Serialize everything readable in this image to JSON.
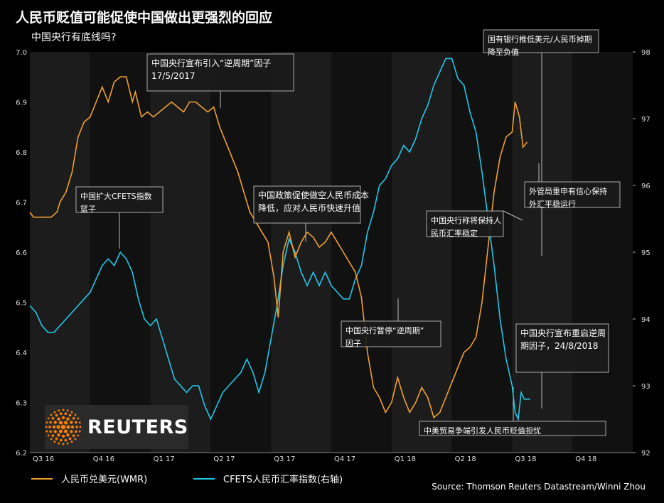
{
  "header": {
    "title": "人民币贬值可能促使中国做出更强烈的回应",
    "subtitle": "中国央行有底线吗?"
  },
  "legend": {
    "series1": "人民币兑美元(WMR)",
    "series2": "CFETS人民币汇率指数(右轴)"
  },
  "source": "Source: Thomson Reuters Datastream/Winni Zhou",
  "logo": {
    "text": "REUTERS",
    "icon": "reuters-dots-logo"
  },
  "colors": {
    "cny": "#f0a030",
    "cfets": "#1ec8e6",
    "background": "#000000"
  },
  "chart_data": {
    "type": "line",
    "x_ticks": [
      "Q3 16",
      "Q4 16",
      "Q1 17",
      "Q2 17",
      "Q3 17",
      "Q4 17",
      "Q1 18",
      "Q2 18",
      "Q3 18",
      "Q4 18"
    ],
    "y_left": {
      "range": [
        6.2,
        7.0
      ],
      "ticks": [
        "6.2",
        "6.3",
        "6.4",
        "6.5",
        "6.6",
        "6.7",
        "6.8",
        "6.9",
        "7.0"
      ]
    },
    "y_right": {
      "range": [
        92,
        98
      ],
      "ticks": [
        "92",
        "93",
        "94",
        "95",
        "96",
        "97",
        "98"
      ]
    },
    "series": [
      {
        "name": "人民币兑美元(WMR)",
        "axis": "left",
        "points": [
          [
            0,
            6.68
          ],
          [
            0.06,
            6.67
          ],
          [
            0.1,
            6.67
          ],
          [
            0.2,
            6.67
          ],
          [
            0.28,
            6.67
          ],
          [
            0.35,
            6.67
          ],
          [
            0.45,
            6.68
          ],
          [
            0.5,
            6.7
          ],
          [
            0.6,
            6.72
          ],
          [
            0.7,
            6.76
          ],
          [
            0.8,
            6.83
          ],
          [
            0.9,
            6.86
          ],
          [
            1.0,
            6.87
          ],
          [
            1.1,
            6.9
          ],
          [
            1.2,
            6.93
          ],
          [
            1.3,
            6.9
          ],
          [
            1.4,
            6.94
          ],
          [
            1.5,
            6.95
          ],
          [
            1.6,
            6.95
          ],
          [
            1.7,
            6.9
          ],
          [
            1.75,
            6.92
          ],
          [
            1.85,
            6.87
          ],
          [
            1.95,
            6.88
          ],
          [
            2.05,
            6.87
          ],
          [
            2.15,
            6.88
          ],
          [
            2.25,
            6.89
          ],
          [
            2.35,
            6.9
          ],
          [
            2.45,
            6.89
          ],
          [
            2.55,
            6.88
          ],
          [
            2.65,
            6.9
          ],
          [
            2.75,
            6.9
          ],
          [
            2.85,
            6.89
          ],
          [
            2.95,
            6.88
          ],
          [
            3.05,
            6.89
          ],
          [
            3.15,
            6.85
          ],
          [
            3.25,
            6.82
          ],
          [
            3.35,
            6.79
          ],
          [
            3.45,
            6.76
          ],
          [
            3.55,
            6.72
          ],
          [
            3.65,
            6.68
          ],
          [
            3.75,
            6.66
          ],
          [
            3.85,
            6.64
          ],
          [
            3.95,
            6.62
          ],
          [
            4.05,
            6.55
          ],
          [
            4.12,
            6.47
          ],
          [
            4.2,
            6.6
          ],
          [
            4.3,
            6.64
          ],
          [
            4.4,
            6.59
          ],
          [
            4.5,
            6.62
          ],
          [
            4.6,
            6.64
          ],
          [
            4.7,
            6.63
          ],
          [
            4.8,
            6.61
          ],
          [
            4.9,
            6.62
          ],
          [
            5.0,
            6.64
          ],
          [
            5.1,
            6.62
          ],
          [
            5.2,
            6.6
          ],
          [
            5.3,
            6.58
          ],
          [
            5.4,
            6.56
          ],
          [
            5.5,
            6.51
          ],
          [
            5.6,
            6.4
          ],
          [
            5.7,
            6.33
          ],
          [
            5.8,
            6.31
          ],
          [
            5.9,
            6.28
          ],
          [
            6.0,
            6.3
          ],
          [
            6.1,
            6.35
          ],
          [
            6.2,
            6.31
          ],
          [
            6.3,
            6.28
          ],
          [
            6.4,
            6.3
          ],
          [
            6.5,
            6.33
          ],
          [
            6.6,
            6.31
          ],
          [
            6.7,
            6.27
          ],
          [
            6.8,
            6.28
          ],
          [
            6.9,
            6.31
          ],
          [
            7.0,
            6.34
          ],
          [
            7.1,
            6.37
          ],
          [
            7.2,
            6.4
          ],
          [
            7.3,
            6.41
          ],
          [
            7.4,
            6.43
          ],
          [
            7.5,
            6.5
          ],
          [
            7.6,
            6.61
          ],
          [
            7.7,
            6.72
          ],
          [
            7.8,
            6.79
          ],
          [
            7.9,
            6.83
          ],
          [
            8.0,
            6.84
          ],
          [
            8.05,
            6.9
          ],
          [
            8.12,
            6.87
          ],
          [
            8.18,
            6.81
          ],
          [
            8.25,
            6.82
          ]
        ]
      },
      {
        "name": "CFETS人民币汇率指数(右轴)",
        "axis": "right",
        "points": [
          [
            0,
            94.2
          ],
          [
            0.1,
            94.1
          ],
          [
            0.2,
            93.9
          ],
          [
            0.3,
            93.8
          ],
          [
            0.4,
            93.8
          ],
          [
            0.5,
            93.9
          ],
          [
            0.6,
            94.0
          ],
          [
            0.7,
            94.1
          ],
          [
            0.8,
            94.2
          ],
          [
            0.9,
            94.3
          ],
          [
            1.0,
            94.4
          ],
          [
            1.1,
            94.6
          ],
          [
            1.2,
            94.8
          ],
          [
            1.3,
            94.9
          ],
          [
            1.4,
            94.8
          ],
          [
            1.5,
            95.0
          ],
          [
            1.6,
            94.9
          ],
          [
            1.7,
            94.7
          ],
          [
            1.8,
            94.3
          ],
          [
            1.9,
            94.0
          ],
          [
            2.0,
            93.9
          ],
          [
            2.1,
            94.0
          ],
          [
            2.2,
            93.7
          ],
          [
            2.3,
            93.4
          ],
          [
            2.4,
            93.1
          ],
          [
            2.5,
            93.0
          ],
          [
            2.6,
            92.9
          ],
          [
            2.7,
            93.0
          ],
          [
            2.8,
            93.0
          ],
          [
            2.9,
            92.7
          ],
          [
            3.0,
            92.5
          ],
          [
            3.1,
            92.7
          ],
          [
            3.2,
            92.9
          ],
          [
            3.3,
            93.0
          ],
          [
            3.4,
            93.1
          ],
          [
            3.5,
            93.2
          ],
          [
            3.6,
            93.4
          ],
          [
            3.7,
            93.2
          ],
          [
            3.8,
            92.9
          ],
          [
            3.9,
            93.2
          ],
          [
            4.0,
            93.7
          ],
          [
            4.1,
            94.2
          ],
          [
            4.2,
            94.8
          ],
          [
            4.3,
            95.2
          ],
          [
            4.4,
            95.0
          ],
          [
            4.5,
            94.7
          ],
          [
            4.6,
            94.5
          ],
          [
            4.7,
            94.7
          ],
          [
            4.8,
            94.5
          ],
          [
            4.9,
            94.7
          ],
          [
            5.0,
            94.5
          ],
          [
            5.1,
            94.4
          ],
          [
            5.2,
            94.3
          ],
          [
            5.3,
            94.3
          ],
          [
            5.4,
            94.6
          ],
          [
            5.5,
            94.8
          ],
          [
            5.6,
            95.3
          ],
          [
            5.7,
            95.6
          ],
          [
            5.8,
            96.0
          ],
          [
            5.9,
            96.1
          ],
          [
            6.0,
            96.3
          ],
          [
            6.1,
            96.4
          ],
          [
            6.2,
            96.6
          ],
          [
            6.3,
            96.5
          ],
          [
            6.4,
            96.7
          ],
          [
            6.5,
            97.0
          ],
          [
            6.6,
            97.2
          ],
          [
            6.7,
            97.5
          ],
          [
            6.8,
            97.7
          ],
          [
            6.9,
            97.9
          ],
          [
            7.0,
            97.9
          ],
          [
            7.1,
            97.6
          ],
          [
            7.2,
            97.5
          ],
          [
            7.3,
            97.1
          ],
          [
            7.4,
            96.8
          ],
          [
            7.5,
            96.2
          ],
          [
            7.6,
            95.5
          ],
          [
            7.7,
            94.8
          ],
          [
            7.8,
            94.0
          ],
          [
            7.9,
            93.4
          ],
          [
            8.0,
            93.0
          ],
          [
            8.05,
            92.6
          ],
          [
            8.1,
            92.5
          ],
          [
            8.15,
            92.9
          ],
          [
            8.2,
            92.8
          ],
          [
            8.3,
            92.8
          ]
        ]
      }
    ],
    "annotations": [
      {
        "text": "中国央行宣布引入“逆周期”因子 17/5/2017",
        "lines": [
          "中国央行宣布引入“逆周期”因子",
          "17/5/2017"
        ]
      },
      {
        "text": "中国扩大CFETS指数篮子",
        "lines": [
          "中国扩大CFETS指数",
          "篮子"
        ]
      },
      {
        "text": "中国政策促使做空人民币成本降低，应对人民币快速升值",
        "lines": [
          "中国政策促使做空人民币成本",
          "降低，应对人民币快速升值"
        ]
      },
      {
        "text": "中国央行暂停“逆周期”因子",
        "lines": [
          "中国央行暂停“逆周期”",
          "因子"
        ]
      },
      {
        "text": "国有银行推低美元/人民币掉期降至负值",
        "lines": [
          "国有银行推低美元/人民币掉期",
          "降至负值"
        ]
      },
      {
        "text": "外管局重申有信心保持外汇平稳运行",
        "lines": [
          "外管局重申有信心保持",
          "外汇平稳运行"
        ]
      },
      {
        "text": "中国央行称将保持人民币汇率稳定",
        "lines": [
          "中国央行称将保持人",
          "民币汇率稳定"
        ]
      },
      {
        "text": "中国央行宣布重启逆周期因子，24/8/2018",
        "lines": [
          "中国央行宣布重启逆周",
          "期因子，24/8/2018"
        ]
      },
      {
        "text": "中美贸易争端引发人民币贬值担忧",
        "lines": [
          "中美贸易争端引发人民币贬值担忧"
        ]
      }
    ]
  }
}
